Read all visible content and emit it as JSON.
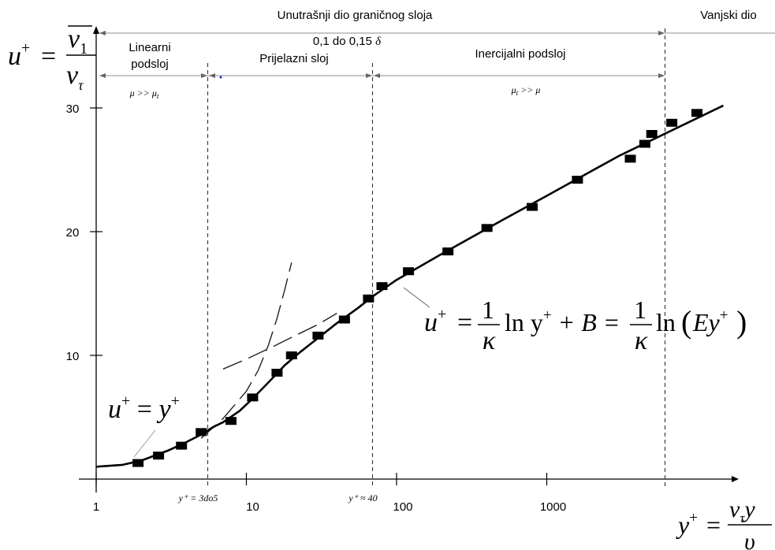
{
  "chart_data": {
    "type": "scatter",
    "x_scale": "log",
    "xlim": [
      1,
      10000
    ],
    "ylim": [
      0,
      30
    ],
    "x_ticks": [
      {
        "value": 1,
        "label": "1"
      },
      {
        "value": 10,
        "label": "10"
      },
      {
        "value": 100,
        "label": "100"
      },
      {
        "value": 1000,
        "label": "1000"
      }
    ],
    "y_ticks": [
      {
        "value": 10,
        "label": "10"
      },
      {
        "value": 20,
        "label": "20"
      },
      {
        "value": 30,
        "label": "30"
      }
    ],
    "markers": [
      {
        "x": 1.9,
        "y": 1.3
      },
      {
        "x": 2.6,
        "y": 1.9
      },
      {
        "x": 3.7,
        "y": 2.7
      },
      {
        "x": 5.0,
        "y": 3.8
      },
      {
        "x": 7.9,
        "y": 4.7
      },
      {
        "x": 11.0,
        "y": 6.6
      },
      {
        "x": 16.0,
        "y": 8.6
      },
      {
        "x": 20.0,
        "y": 10.0
      },
      {
        "x": 30.0,
        "y": 11.6
      },
      {
        "x": 45.0,
        "y": 12.9
      },
      {
        "x": 65.0,
        "y": 14.6
      },
      {
        "x": 80.0,
        "y": 15.6
      },
      {
        "x": 120.0,
        "y": 16.8
      },
      {
        "x": 220.0,
        "y": 18.4
      },
      {
        "x": 400.0,
        "y": 20.3
      },
      {
        "x": 800.0,
        "y": 22.0
      },
      {
        "x": 1600.0,
        "y": 24.2
      },
      {
        "x": 3600.0,
        "y": 25.9
      },
      {
        "x": 4500.0,
        "y": 27.1
      },
      {
        "x": 5000.0,
        "y": 27.9
      },
      {
        "x": 6800.0,
        "y": 28.8
      },
      {
        "x": 10000.0,
        "y": 29.6
      }
    ],
    "curves": {
      "overall": [
        [
          1,
          1.0
        ],
        [
          1.5,
          1.15
        ],
        [
          2,
          1.5
        ],
        [
          3,
          2.3
        ],
        [
          4,
          3.0
        ],
        [
          5,
          3.6
        ],
        [
          6,
          4.2
        ],
        [
          7,
          4.6
        ],
        [
          9,
          5.5
        ],
        [
          11,
          6.5
        ],
        [
          14,
          7.8
        ],
        [
          18,
          9.2
        ],
        [
          23,
          10.3
        ],
        [
          30,
          11.4
        ],
        [
          40,
          12.6
        ],
        [
          55,
          13.8
        ],
        [
          70,
          14.8
        ],
        [
          100,
          16.1
        ],
        [
          200,
          18.2
        ],
        [
          500,
          20.9
        ],
        [
          1000,
          22.9
        ],
        [
          3000,
          26.1
        ],
        [
          15000,
          30.2
        ]
      ],
      "linear_sublayer_u_eq_y": [
        [
          5,
          3.3
        ],
        [
          7,
          4.9
        ],
        [
          10,
          7.1
        ],
        [
          12,
          8.8
        ],
        [
          14,
          10.8
        ],
        [
          16,
          13.0
        ],
        [
          18,
          15.3
        ],
        [
          20,
          17.5
        ]
      ],
      "log_law_extension": [
        [
          7,
          8.9
        ],
        [
          10,
          9.7
        ],
        [
          15,
          10.7
        ],
        [
          22,
          11.7
        ],
        [
          30,
          12.5
        ],
        [
          40,
          13.4
        ]
      ]
    },
    "boundaries": [
      {
        "x": 5,
        "label": "y⁺ = 3do5"
      },
      {
        "x": 40,
        "label": "y⁺ ≈ 40"
      },
      {
        "x": 4500,
        "label": ""
      }
    ],
    "regions": {
      "inner_layer": "Unutrašnji dio graničnog sloja",
      "outer_part": "Vanjski dio",
      "delta_range": "0,1 do 0,15",
      "delta_symbol": "δ",
      "linear": "Linearni",
      "linear_2": "podsloj",
      "buffer": "Prijelazni sloj",
      "inertial": "Inercijalni podsloj",
      "viscosity_linear": "μ >> μ",
      "viscosity_linear_sub": "t",
      "viscosity_inertial": "μ",
      "viscosity_inertial_sub": "t",
      "viscosity_inertial_rel": ">> μ"
    },
    "formulas": {
      "y_label": {
        "lhs": "u",
        "sup": "+",
        "num": "v",
        "num_sub": "1",
        "den": "v",
        "den_sub": "τ"
      },
      "x_label": {
        "lhs": "y",
        "sup": "+",
        "num": "v",
        "num_sub": "τ",
        "num_tail": "y",
        "den": "υ"
      },
      "linear": {
        "lhs": "u",
        "sup": "+",
        "rhs": "y"
      },
      "log_law": {
        "lhs": "u",
        "sup": "+",
        "one": "1",
        "kappa": "κ",
        "ln1": "ln y",
        "plusB": "+ B =",
        "ln2": "ln",
        "paren_body": "Ey"
      }
    }
  }
}
